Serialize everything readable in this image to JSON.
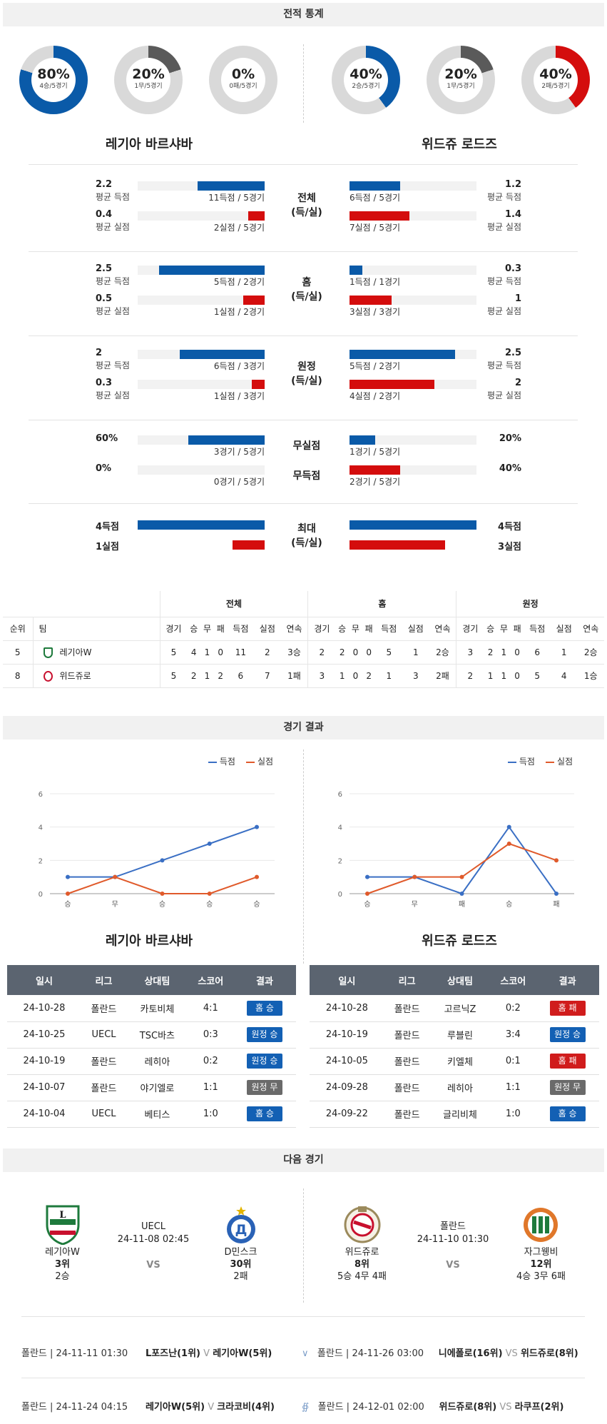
{
  "sections": {
    "stats": "전적 통계",
    "results": "경기 결과",
    "next": "다음 경기"
  },
  "teams": {
    "home": "레기아 바르샤바",
    "away": "위드쥬 로드즈"
  },
  "donuts": {
    "home": [
      {
        "pct": "80%",
        "sub": "4승/5경기",
        "value": 0.8,
        "color": "#0a5aa8"
      },
      {
        "pct": "20%",
        "sub": "1무/5경기",
        "value": 0.2,
        "color": "#5a5a5a"
      },
      {
        "pct": "0%",
        "sub": "0패/5경기",
        "value": 0.0,
        "color": "#d40d0d"
      }
    ],
    "away": [
      {
        "pct": "40%",
        "sub": "2승/5경기",
        "value": 0.4,
        "color": "#0a5aa8"
      },
      {
        "pct": "20%",
        "sub": "1무/5경기",
        "value": 0.2,
        "color": "#5a5a5a"
      },
      {
        "pct": "40%",
        "sub": "2패/5경기",
        "value": 0.4,
        "color": "#d40d0d"
      }
    ]
  },
  "stat_groups": [
    {
      "label1": "전체",
      "label2": "(득/실)",
      "rows": [
        {
          "home_num": "2.2",
          "home_lbl": "평균 득점",
          "home_cap": "11득점 / 5경기",
          "home_frac": 0.53,
          "away_num": "1.2",
          "away_lbl": "평균 득점",
          "away_cap": "6득점 / 5경기",
          "away_frac": 0.4,
          "color": "blue"
        },
        {
          "home_num": "0.4",
          "home_lbl": "평균 실점",
          "home_cap": "2실점 / 5경기",
          "home_frac": 0.13,
          "away_num": "1.4",
          "away_lbl": "평균 실점",
          "away_cap": "7실점 / 5경기",
          "away_frac": 0.47,
          "color": "red"
        }
      ]
    },
    {
      "label1": "홈",
      "label2": "(득/실)",
      "rows": [
        {
          "home_num": "2.5",
          "home_lbl": "평균 득점",
          "home_cap": "5득점 / 2경기",
          "home_frac": 0.83,
          "away_num": "0.3",
          "away_lbl": "평균 득점",
          "away_cap": "1득점 / 1경기",
          "away_frac": 0.1,
          "color": "blue"
        },
        {
          "home_num": "0.5",
          "home_lbl": "평균 실점",
          "home_cap": "1실점 / 2경기",
          "home_frac": 0.17,
          "away_num": "1",
          "away_lbl": "평균 실점",
          "away_cap": "3실점 / 3경기",
          "away_frac": 0.33,
          "color": "red"
        }
      ]
    },
    {
      "label1": "원정",
      "label2": "(득/실)",
      "rows": [
        {
          "home_num": "2",
          "home_lbl": "평균 득점",
          "home_cap": "6득점 / 3경기",
          "home_frac": 0.67,
          "away_num": "2.5",
          "away_lbl": "평균 득점",
          "away_cap": "5득점 / 2경기",
          "away_frac": 0.83,
          "color": "blue"
        },
        {
          "home_num": "0.3",
          "home_lbl": "평균 실점",
          "home_cap": "1실점 / 3경기",
          "home_frac": 0.1,
          "away_num": "2",
          "away_lbl": "평균 실점",
          "away_cap": "4실점 / 2경기",
          "away_frac": 0.67,
          "color": "red"
        }
      ]
    }
  ],
  "clean": {
    "rows": [
      {
        "home_num": "60%",
        "home_cap": "3경기 / 5경기",
        "home_frac": 0.6,
        "mid": "무실점",
        "away_num": "20%",
        "away_cap": "1경기 / 5경기",
        "away_frac": 0.2,
        "color": "blue"
      },
      {
        "home_num": "0%",
        "home_cap": "0경기 / 5경기",
        "home_frac": 0.0,
        "mid": "무득점",
        "away_num": "40%",
        "away_cap": "2경기 / 5경기",
        "away_frac": 0.4,
        "color": "red"
      }
    ]
  },
  "maxrow": {
    "label1": "최대",
    "label2": "(득/실)",
    "home_goals": "4득점",
    "home_goals_frac": 1.0,
    "home_conc": "1실점",
    "home_conc_frac": 0.25,
    "away_goals": "4득점",
    "away_goals_frac": 1.0,
    "away_conc": "3실점",
    "away_conc_frac": 0.75
  },
  "standings": {
    "groups": [
      "전체",
      "홈",
      "원정"
    ],
    "headers": [
      "순위",
      "팀",
      "경기",
      "승",
      "무",
      "패",
      "득점",
      "실점",
      "연속",
      "경기",
      "승",
      "무",
      "패",
      "득점",
      "실점",
      "연속",
      "경기",
      "승",
      "무",
      "패",
      "득점",
      "실점",
      "연속"
    ],
    "rows": [
      [
        "5",
        "레기아W",
        "5",
        "4",
        "1",
        "0",
        "11",
        "2",
        "3승",
        "2",
        "2",
        "0",
        "0",
        "5",
        "1",
        "2승",
        "3",
        "2",
        "1",
        "0",
        "6",
        "1",
        "2승"
      ],
      [
        "8",
        "위드쥬로",
        "5",
        "2",
        "1",
        "2",
        "6",
        "7",
        "1패",
        "3",
        "1",
        "0",
        "2",
        "1",
        "3",
        "2패",
        "2",
        "1",
        "1",
        "0",
        "5",
        "4",
        "1승"
      ]
    ]
  },
  "charts_legend": {
    "scored": "득점",
    "conceded": "실점"
  },
  "chart_data": [
    {
      "type": "line",
      "categories": [
        "승",
        "무",
        "승",
        "승",
        "승"
      ],
      "series": [
        {
          "name": "득점",
          "values": [
            1,
            1,
            2,
            3,
            4
          ],
          "color": "#3a6fc4"
        },
        {
          "name": "실점",
          "values": [
            0,
            1,
            0,
            0,
            1
          ],
          "color": "#e05a2b"
        }
      ],
      "yticks": [
        0,
        2,
        4,
        6
      ],
      "ylim": [
        0,
        6
      ]
    },
    {
      "type": "line",
      "categories": [
        "승",
        "무",
        "패",
        "승",
        "패"
      ],
      "series": [
        {
          "name": "득점",
          "values": [
            1,
            1,
            0,
            4,
            0
          ],
          "color": "#3a6fc4"
        },
        {
          "name": "실점",
          "values": [
            0,
            1,
            1,
            3,
            2
          ],
          "color": "#e05a2b"
        }
      ],
      "yticks": [
        0,
        2,
        4,
        6
      ],
      "ylim": [
        0,
        6
      ]
    }
  ],
  "results": {
    "headers": [
      "일시",
      "리그",
      "상대팀",
      "스코어",
      "결과"
    ],
    "home": [
      [
        "24-10-28",
        "폴란드",
        "카토비체",
        "4:1",
        "홈 승",
        "win"
      ],
      [
        "24-10-25",
        "UECL",
        "TSC바츠",
        "0:3",
        "원정 승",
        "win"
      ],
      [
        "24-10-19",
        "폴란드",
        "레히아",
        "0:2",
        "원정 승",
        "win"
      ],
      [
        "24-10-07",
        "폴란드",
        "야기엘로",
        "1:1",
        "원정 무",
        "draw"
      ],
      [
        "24-10-04",
        "UECL",
        "베티스",
        "1:0",
        "홈 승",
        "win"
      ]
    ],
    "away": [
      [
        "24-10-28",
        "폴란드",
        "고르닉Z",
        "0:2",
        "홈 패",
        "lose"
      ],
      [
        "24-10-19",
        "폴란드",
        "루블린",
        "3:4",
        "원정 승",
        "win"
      ],
      [
        "24-10-05",
        "폴란드",
        "키엘체",
        "0:1",
        "홈 패",
        "lose"
      ],
      [
        "24-09-28",
        "폴란드",
        "레히아",
        "1:1",
        "원정 무",
        "draw"
      ],
      [
        "24-09-22",
        "폴란드",
        "글리비체",
        "1:0",
        "홈 승",
        "win"
      ]
    ]
  },
  "next_games": {
    "home": {
      "league": "UECL",
      "datetime": "24-11-08 02:45",
      "vs": "VS",
      "team1": "레기아W",
      "rank1": "3위",
      "rec1": "2승",
      "team2": "D민스크",
      "rank2": "30위",
      "rec2": "2패"
    },
    "away": {
      "league": "폴란드",
      "datetime": "24-11-10 01:30",
      "vs": "VS",
      "team1": "위드쥬로",
      "rank1": "8위",
      "rec1": "5승 4무 4패",
      "team2": "자그웽비",
      "rank2": "12위",
      "rec2": "4승 3무 6패"
    }
  },
  "fixtures": [
    {
      "info": "폴란드 | 24-11-11 01:30",
      "team_a": "L포즈난(1위)",
      "vs": "V",
      "team_b": "레기아W(5위)"
    },
    {
      "info": "폴란드 | 24-11-26 03:00",
      "team_a": "니에폴로(16위)",
      "vs": "VS",
      "team_b": "위드쥬로(8위)"
    },
    {
      "info": "폴란드 | 24-11-24 04:15",
      "team_a": "레기아W(5위)",
      "vs": "V",
      "team_b": "크라코비(4위)"
    },
    {
      "info": "폴란드 | 24-12-01 02:00",
      "team_a": "위드쥬로(8위)",
      "vs": "VS",
      "team_b": "라쿠프(2위)"
    }
  ]
}
